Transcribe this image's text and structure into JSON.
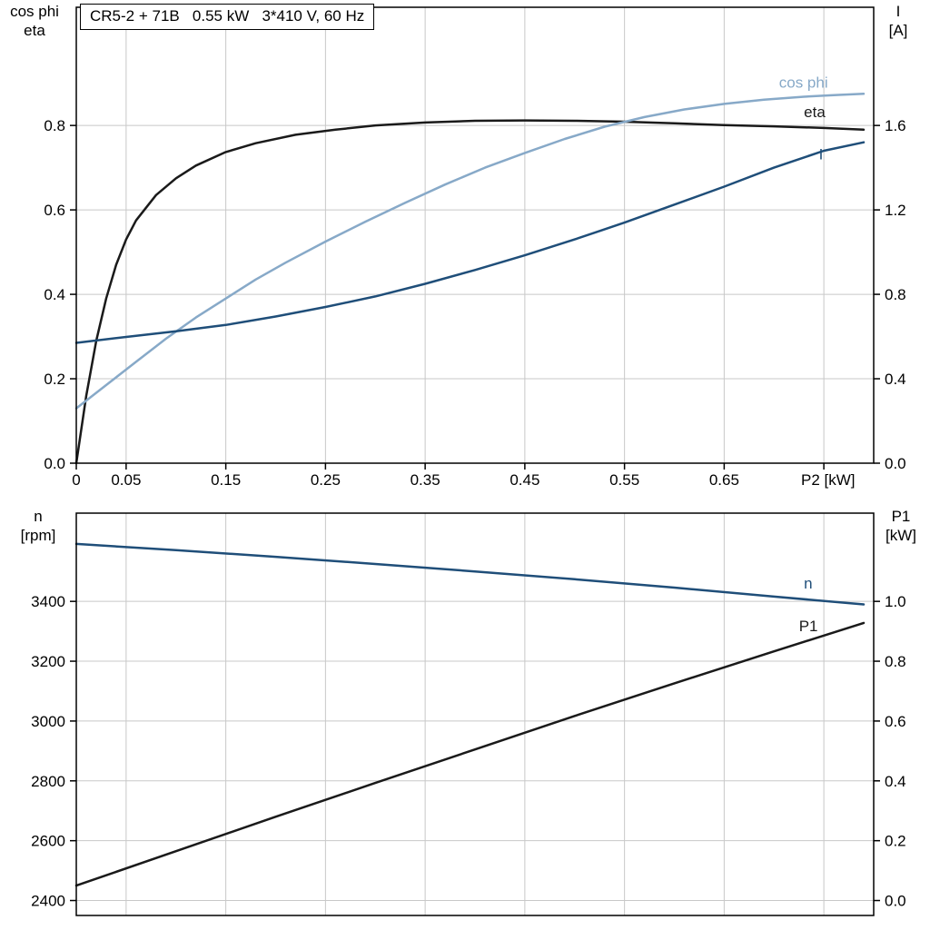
{
  "colors": {
    "black": "#1a1a1a",
    "dark_blue": "#1f4e79",
    "light_blue": "#87a9c8",
    "grid": "#c8c8c8",
    "frame": "#000000"
  },
  "chart_data": [
    {
      "type": "line",
      "title": "CR5-2 + 71B   0.55 kW   3*410 V, 60 Hz",
      "x_axis": {
        "label": "P2 [kW]",
        "range": [
          0,
          0.8
        ],
        "tick_marks": [
          0,
          0.05,
          0.15,
          0.25,
          0.35,
          0.45,
          0.55,
          0.65,
          0.75
        ],
        "label_ticks": [
          0,
          0.05,
          0.15,
          0.25,
          0.35,
          0.45,
          0.55,
          0.65
        ],
        "tick_labels": [
          "0",
          "0.05",
          "0.15",
          "0.25",
          "0.35",
          "0.45",
          "0.55",
          "0.65"
        ],
        "grid": [
          0.05,
          0.15,
          0.25,
          0.35,
          0.45,
          0.55,
          0.65,
          0.75
        ]
      },
      "y_left": {
        "label": [
          "cos phi",
          "eta"
        ],
        "range": [
          0,
          1.08
        ],
        "ticks": [
          0,
          0.2,
          0.4,
          0.6,
          0.8
        ],
        "tick_labels": [
          "0.0",
          "0.2",
          "0.4",
          "0.6",
          "0.8"
        ],
        "grid": [
          0.2,
          0.4,
          0.6,
          0.8
        ]
      },
      "y_right": {
        "label": [
          "I",
          "[A]"
        ],
        "range": [
          0,
          2.16
        ],
        "ticks": [
          0,
          0.4,
          0.8,
          1.2,
          1.6
        ],
        "tick_labels": [
          "0.0",
          "0.4",
          "0.8",
          "1.2",
          "1.6"
        ]
      },
      "series": [
        {
          "name": "eta",
          "axis": "left",
          "color": "black",
          "label_anchor": [
            0.73,
            0.82
          ],
          "x": [
            0,
            0.01,
            0.02,
            0.03,
            0.04,
            0.05,
            0.06,
            0.08,
            0.1,
            0.12,
            0.15,
            0.18,
            0.22,
            0.26,
            0.3,
            0.35,
            0.4,
            0.45,
            0.5,
            0.55,
            0.6,
            0.65,
            0.7,
            0.75,
            0.79
          ],
          "y": [
            0,
            0.16,
            0.29,
            0.39,
            0.47,
            0.53,
            0.575,
            0.635,
            0.675,
            0.705,
            0.737,
            0.758,
            0.778,
            0.79,
            0.8,
            0.807,
            0.811,
            0.812,
            0.811,
            0.809,
            0.805,
            0.801,
            0.798,
            0.794,
            0.79
          ]
        },
        {
          "name": "cos phi",
          "axis": "left",
          "color": "light_blue",
          "label_anchor": [
            0.705,
            0.89
          ],
          "x": [
            0,
            0.03,
            0.06,
            0.09,
            0.12,
            0.15,
            0.18,
            0.21,
            0.25,
            0.29,
            0.33,
            0.37,
            0.41,
            0.45,
            0.49,
            0.53,
            0.57,
            0.61,
            0.65,
            0.69,
            0.73,
            0.76,
            0.79
          ],
          "y": [
            0.13,
            0.185,
            0.24,
            0.295,
            0.345,
            0.39,
            0.435,
            0.475,
            0.525,
            0.572,
            0.617,
            0.66,
            0.7,
            0.735,
            0.768,
            0.797,
            0.82,
            0.838,
            0.851,
            0.861,
            0.868,
            0.872,
            0.875
          ]
        },
        {
          "name": "I",
          "axis": "right",
          "color": "dark_blue",
          "label_anchor": [
            0.745,
            1.44
          ],
          "x": [
            0,
            0.05,
            0.1,
            0.15,
            0.2,
            0.25,
            0.3,
            0.35,
            0.4,
            0.45,
            0.5,
            0.55,
            0.6,
            0.65,
            0.7,
            0.75,
            0.79
          ],
          "y": [
            0.57,
            0.598,
            0.625,
            0.655,
            0.695,
            0.74,
            0.79,
            0.85,
            0.915,
            0.985,
            1.06,
            1.14,
            1.225,
            1.31,
            1.4,
            1.48,
            1.52
          ]
        }
      ]
    },
    {
      "type": "line",
      "x_axis": {
        "range": [
          0,
          0.8
        ],
        "grid": [
          0.05,
          0.15,
          0.25,
          0.35,
          0.45,
          0.55,
          0.65,
          0.75
        ]
      },
      "y_left": {
        "label": [
          "n",
          "[rpm]"
        ],
        "range": [
          2350,
          3695
        ],
        "ticks": [
          2400,
          2600,
          2800,
          3000,
          3200,
          3400
        ],
        "tick_labels": [
          "2400",
          "2600",
          "2800",
          "3000",
          "3200",
          "3400"
        ],
        "grid": [
          2400,
          2600,
          2800,
          3000,
          3200,
          3400
        ]
      },
      "y_right": {
        "label": [
          "P1",
          "[kW]"
        ],
        "range": [
          -0.05,
          1.295
        ],
        "ticks": [
          0,
          0.2,
          0.4,
          0.6,
          0.8,
          1.0
        ],
        "tick_labels": [
          "0.0",
          "0.2",
          "0.4",
          "0.6",
          "0.8",
          "1.0"
        ]
      },
      "series": [
        {
          "name": "n",
          "axis": "left",
          "color": "dark_blue",
          "label_anchor": [
            0.73,
            3443
          ],
          "x": [
            0,
            0.1,
            0.2,
            0.3,
            0.4,
            0.5,
            0.6,
            0.7,
            0.79
          ],
          "y": [
            3592,
            3571,
            3549,
            3525,
            3500,
            3474,
            3446,
            3416,
            3390
          ]
        },
        {
          "name": "P1",
          "axis": "right",
          "color": "black",
          "label_anchor": [
            0.725,
            0.9
          ],
          "x": [
            0,
            0.1,
            0.2,
            0.3,
            0.4,
            0.5,
            0.6,
            0.7,
            0.79
          ],
          "y": [
            0.05,
            0.165,
            0.28,
            0.393,
            0.505,
            0.617,
            0.726,
            0.833,
            0.928
          ]
        }
      ]
    }
  ]
}
